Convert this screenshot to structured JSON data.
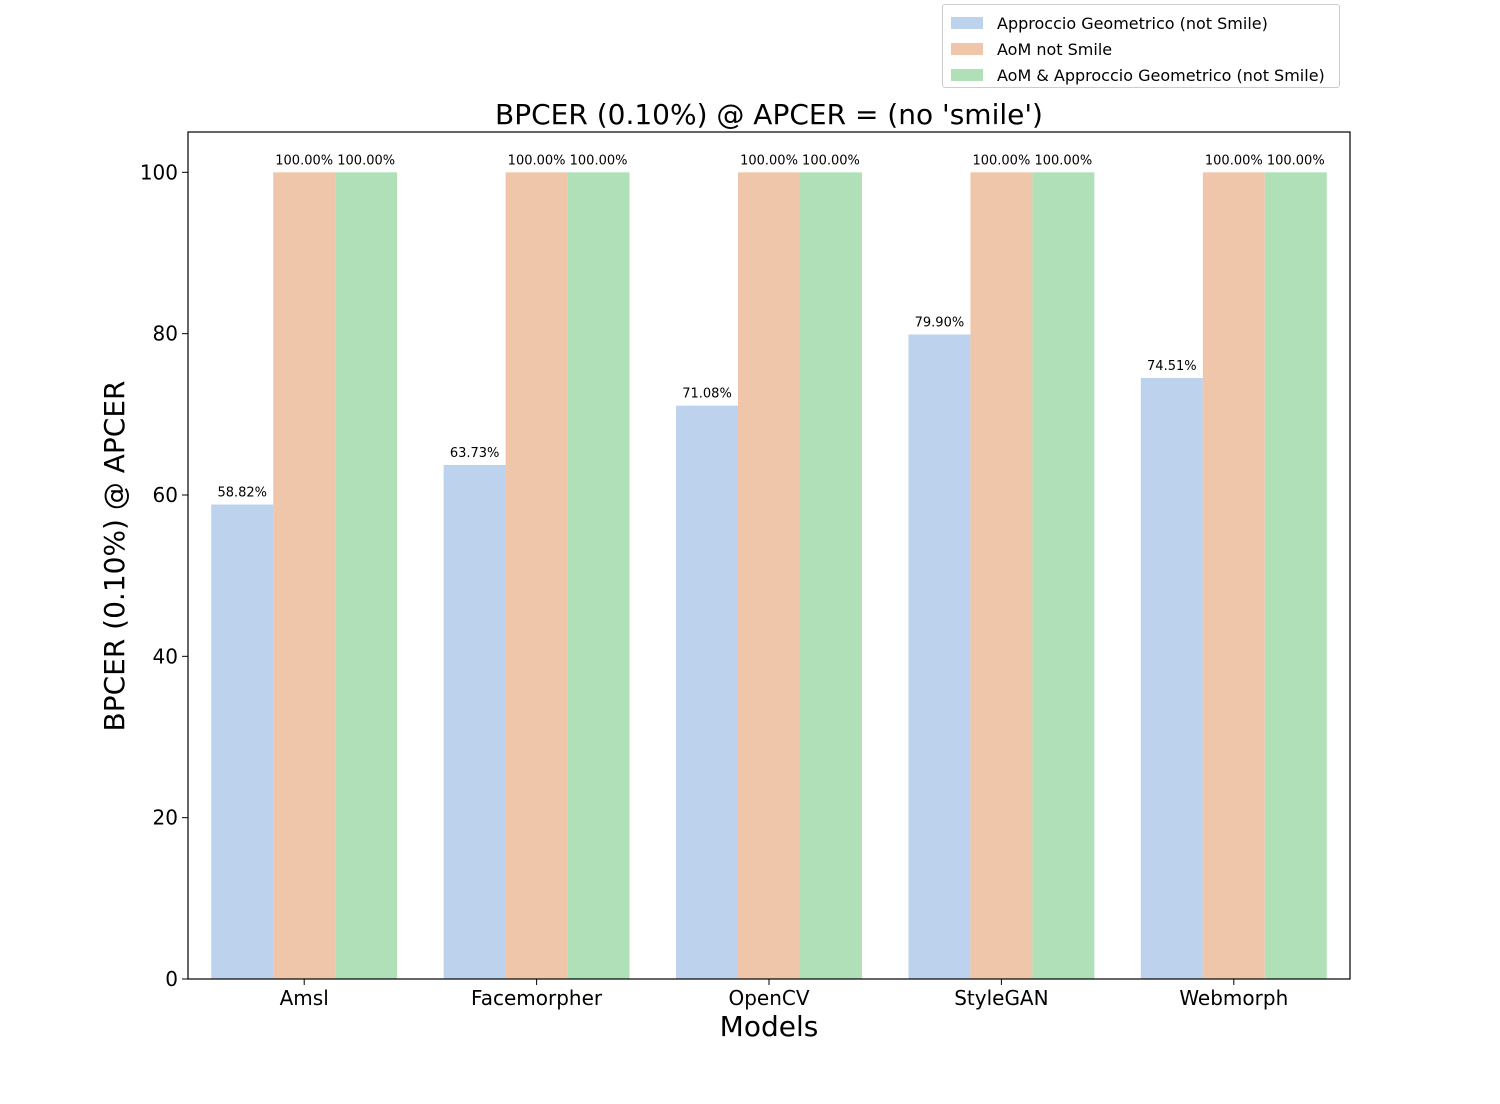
{
  "chart_data": {
    "type": "bar",
    "title": "BPCER (0.10%) @ APCER = (no 'smile')",
    "xlabel": "Models",
    "ylabel": "BPCER (0.10%) @ APCER",
    "ylim": [
      0,
      105
    ],
    "yticks": [
      0,
      20,
      40,
      60,
      80,
      100
    ],
    "grid": false,
    "legend_position": "top-right",
    "categories": [
      "Amsl",
      "Facemorpher",
      "OpenCV",
      "StyleGAN",
      "Webmorph"
    ],
    "series": [
      {
        "name": "Approccio Geometrico (not Smile)",
        "color": "#bdd2ec",
        "values": [
          58.82,
          63.73,
          71.08,
          79.9,
          74.51
        ],
        "labels": [
          "58.82%",
          "63.73%",
          "71.08%",
          "79.90%",
          "74.51%"
        ]
      },
      {
        "name": "AoM not Smile",
        "color": "#efc6aa",
        "values": [
          100,
          100,
          100,
          100,
          100
        ],
        "labels": [
          "100.00%",
          "100.00%",
          "100.00%",
          "100.00%",
          "100.00%"
        ]
      },
      {
        "name": "AoM & Approccio Geometrico (not Smile)",
        "color": "#b0e0b8",
        "values": [
          100,
          100,
          100,
          100,
          100
        ],
        "labels": [
          "100.00%",
          "100.00%",
          "100.00%",
          "100.00%",
          "100.00%"
        ]
      }
    ]
  }
}
